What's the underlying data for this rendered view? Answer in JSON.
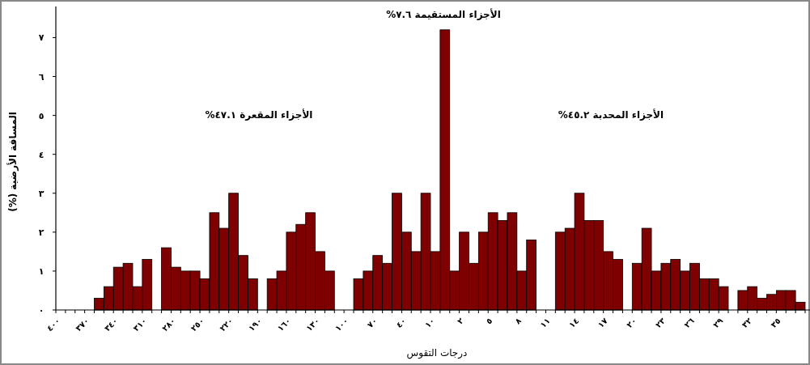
{
  "chart_data": {
    "type": "bar",
    "xlabel": "درجات التقوس",
    "ylabel": "المسافة الأرضية (%)",
    "annotations": [
      "الأجزاء المقعرة ٤٧.١%",
      "الأجزاء المستقيمة ٧.٦%",
      "الأجزاء المحدبة ٤٥.٢%"
    ],
    "categories": [
      "٤٠٠",
      null,
      null,
      "٣٧٠",
      null,
      null,
      "٣٤٠",
      null,
      null,
      "٣١٠",
      null,
      null,
      "٢٨٠",
      null,
      null,
      "٢٥٠",
      null,
      null,
      "٢٢٠",
      null,
      null,
      "١٩٠",
      null,
      null,
      "١٦٠",
      null,
      null,
      "١٣٠",
      null,
      null,
      "١٠٠",
      null,
      null,
      "٧٠",
      null,
      null,
      "٤٠",
      null,
      null,
      "١٠",
      null,
      null,
      "٢",
      null,
      null,
      "٥",
      null,
      null,
      "٨",
      null,
      null,
      "١١",
      null,
      null,
      "١٤",
      null,
      null,
      "١٧",
      null,
      null,
      "٢٠",
      null,
      null,
      "٢٣",
      null,
      null,
      "٢٦",
      null,
      null,
      "٢٩",
      null,
      null,
      "٣٢",
      null,
      null,
      "٣٥",
      null,
      null
    ],
    "values": [
      0,
      0,
      0,
      0,
      0.3,
      0.6,
      1.1,
      1.2,
      0.6,
      1.3,
      0,
      1.6,
      1.1,
      1.0,
      1.0,
      0.8,
      2.5,
      2.1,
      3.0,
      1.4,
      0.8,
      0,
      0.8,
      1.0,
      2.0,
      2.2,
      2.5,
      1.5,
      1.0,
      0,
      0,
      0.8,
      1.0,
      1.4,
      1.2,
      3.0,
      2.0,
      1.5,
      3.0,
      1.5,
      7.2,
      1.0,
      2.0,
      1.2,
      2.0,
      2.5,
      2.3,
      2.5,
      1.0,
      1.8,
      0,
      0,
      2.0,
      2.1,
      3.0,
      2.3,
      2.3,
      1.5,
      1.3,
      0,
      1.2,
      2.1,
      1.0,
      1.2,
      1.3,
      1.0,
      1.2,
      0.8,
      0.8,
      0.6,
      0,
      0.5,
      0.6,
      0.3,
      0.4,
      0.5,
      0.5,
      0.2
    ],
    "color": "#7f0000",
    "ylim": [
      0,
      7.8
    ],
    "yticks": [
      {
        "value": 0,
        "label": "٠"
      },
      {
        "value": 1,
        "label": "١"
      },
      {
        "value": 2,
        "label": "٢"
      },
      {
        "value": 3,
        "label": "٣"
      },
      {
        "value": 4,
        "label": "٤"
      },
      {
        "value": 5,
        "label": "٥"
      },
      {
        "value": 6,
        "label": "٦"
      },
      {
        "value": 7,
        "label": "٧"
      }
    ],
    "grid": false
  }
}
